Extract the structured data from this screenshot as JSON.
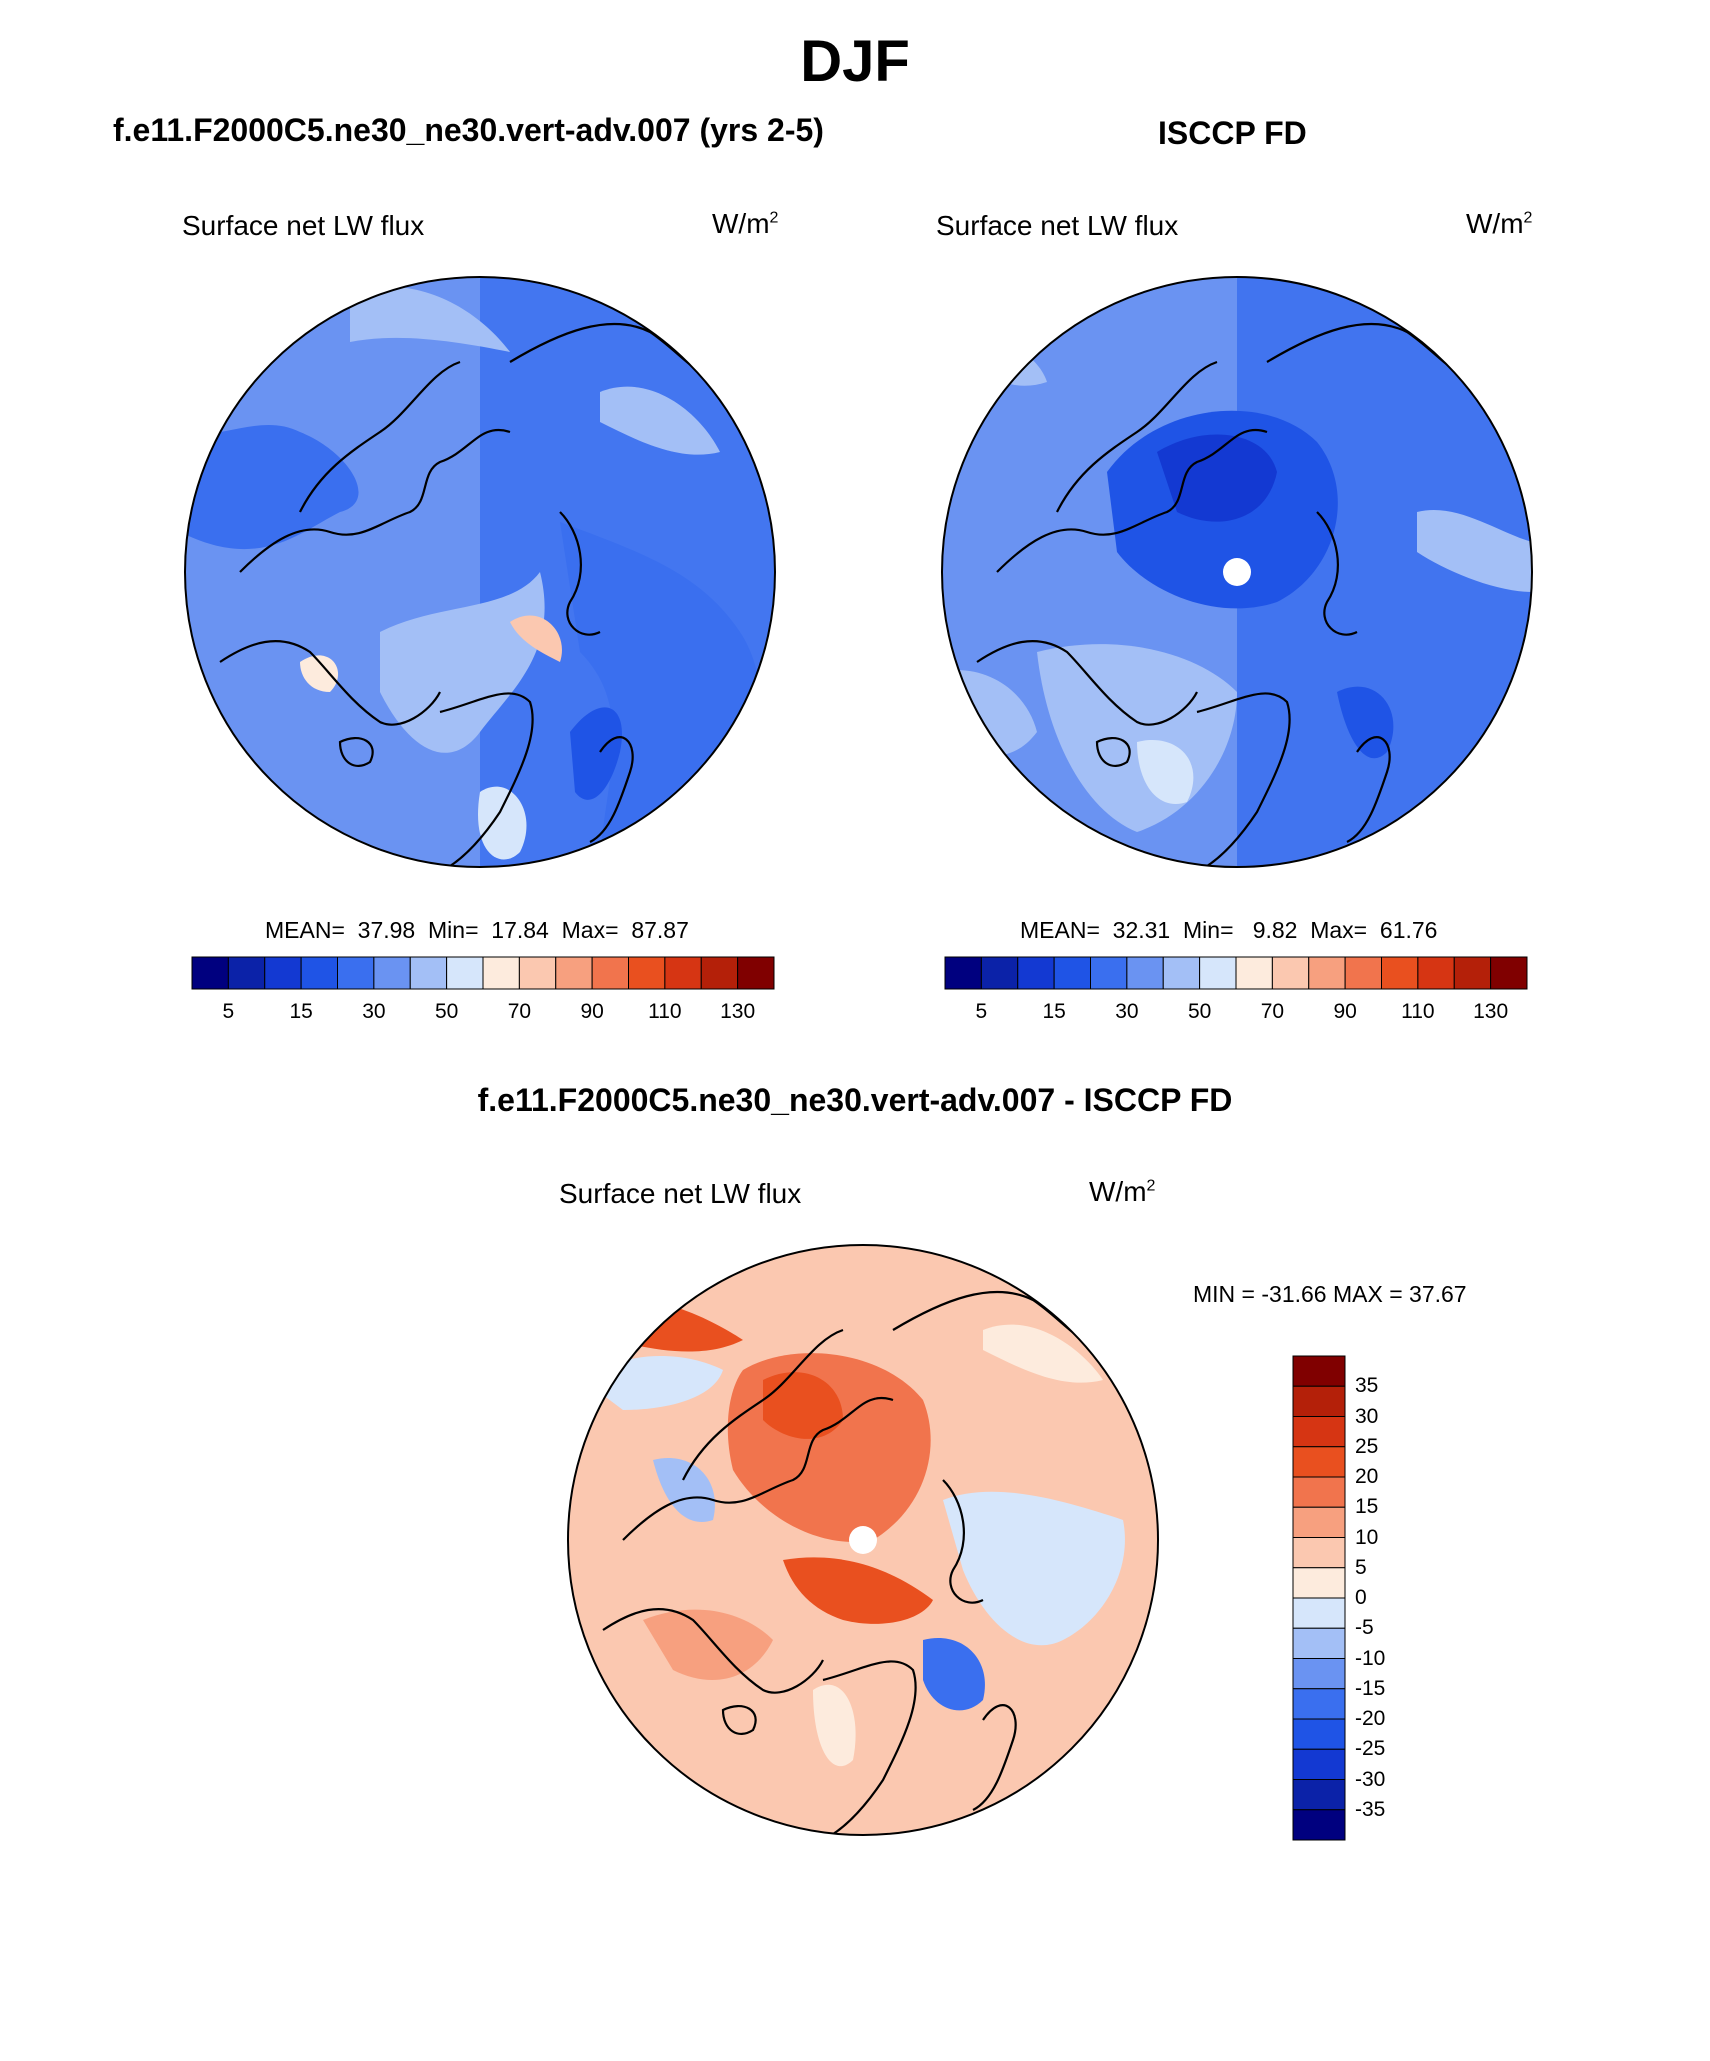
{
  "title": "DJF",
  "panels": {
    "model": {
      "title": "f.e11.F2000C5.ne30_ne30.vert-adv.007 (yrs 2-5)",
      "variable": "Surface net LW flux",
      "units_base": "W/m",
      "units_exp": "2",
      "mean_label": "MEAN=",
      "mean": "37.98",
      "min_label": "Min=",
      "min": "17.84",
      "max_label": "Max=",
      "max": "87.87"
    },
    "obs": {
      "title": "ISCCP FD",
      "variable": "Surface net LW flux",
      "units_base": "W/m",
      "units_exp": "2",
      "mean_label": "MEAN=",
      "mean": "32.31",
      "min_label": "Min=",
      "min": "9.82",
      "max_label": "Max=",
      "max": "61.76"
    },
    "diff": {
      "title": "f.e11.F2000C5.ne30_ne30.vert-adv.007 - ISCCP FD",
      "variable": "Surface net LW flux",
      "units_base": "W/m",
      "units_exp": "2",
      "minmax_text": "MIN = -31.66 MAX =  37.67"
    }
  },
  "colorbar_main": {
    "colors": [
      "#00007f",
      "#0b22a8",
      "#1339d2",
      "#1f54e6",
      "#3a6fef",
      "#6a93f2",
      "#a3bff6",
      "#d6e6fb",
      "#fdebdd",
      "#fbc8b0",
      "#f7a07f",
      "#f1744d",
      "#e9501f",
      "#d63513",
      "#b42009",
      "#800000"
    ],
    "tick_labels": [
      "5",
      "15",
      "30",
      "50",
      "70",
      "90",
      "110",
      "130"
    ]
  },
  "colorbar_diff": {
    "colors": [
      "#00007f",
      "#0b22a8",
      "#1339d2",
      "#1f54e6",
      "#3a6fef",
      "#6a93f2",
      "#a3bff6",
      "#d6e6fb",
      "#fdebdd",
      "#fbc8b0",
      "#f7a07f",
      "#f1744d",
      "#e9501f",
      "#d63513",
      "#b42009",
      "#800000"
    ],
    "tick_labels": [
      "35",
      "30",
      "25",
      "20",
      "15",
      "10",
      "5",
      "0",
      "-5",
      "-10",
      "-15",
      "-20",
      "-25",
      "-30",
      "-35"
    ]
  }
}
